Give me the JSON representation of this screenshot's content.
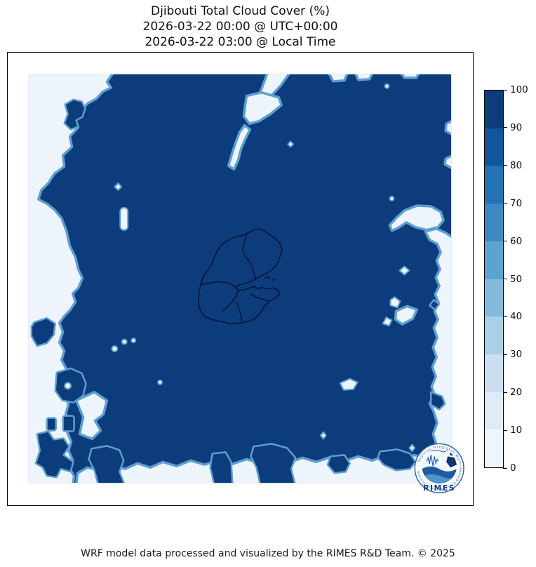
{
  "title": {
    "line1": "Djibouti Total Cloud Cover (%)",
    "line2": "2026-03-22 00:00 @ UTC+00:00",
    "line3": "2026-03-22 03:00 @ Local Time"
  },
  "footer": {
    "credit": "WRF model data processed and visualized by the RIMES R&D Team. © 2025"
  },
  "colorbar": {
    "orientation": "vertical",
    "tick_labels_top_to_bottom": [
      "100",
      "90",
      "80",
      "70",
      "60",
      "50",
      "40",
      "30",
      "20",
      "10",
      "0"
    ],
    "segment_colors_top_to_bottom": [
      "#0c3c7c",
      "#0f569f",
      "#2272b6",
      "#3b8bc2",
      "#5ba3d0",
      "#83badb",
      "#abcfe6",
      "#cadef0",
      "#dfebf7",
      "#eff5fc"
    ]
  },
  "logo": {
    "name": "RIMES",
    "ring_text": "Regional Integrated Multi-Hazard Early Warning System"
  },
  "colors": {
    "map-high": "#0c3c7c",
    "map-low": "#eef4fb",
    "fringe": "#5d9fcf",
    "boundary": "#0a1230",
    "text": "#111111",
    "logo-blue": "#1d5a9e",
    "logo-light-blue": "#4f93cc",
    "logo-navy": "#16407e"
  },
  "chart_data": {
    "type": "heatmap",
    "title": "Djibouti Total Cloud Cover (%)",
    "subtitle_utc": "2026-03-22 00:00 @ UTC+00:00",
    "subtitle_local": "2026-03-22 03:00 @ Local Time",
    "variable": "Total Cloud Cover",
    "units": "%",
    "value_range": [
      0,
      100
    ],
    "bin_size": 10,
    "colorbar_ticks": [
      0,
      10,
      20,
      30,
      40,
      50,
      60,
      70,
      80,
      90,
      100
    ],
    "legend_position": "right colorbar",
    "grid": false,
    "overlay": "Djibouti administrative region boundaries (black outlines, center of map)",
    "dominant_value_bin": "90-100 (dark blue covers most of the domain)",
    "low_cover_features": [
      "broad 0-10% band along entire west (left) edge with embedded 90-100% blobs",
      "diagonal 0-10% streak from top-center edge trending southwest",
      "small 0-10% notches on the top edge near x≈470-600",
      "C-shaped 0-10% patch hugging the east (right) edge from upper-middle downward",
      "narrow 0-10% strip along the east edge continuing to the bottom-right corner",
      "0-10% strip along the entire bottom edge with 90-100% bumps crossing it",
      "scattered tiny 0-10% specks within the dark field"
    ],
    "branding": "RIMES circular logo at bottom-right inside map frame"
  }
}
